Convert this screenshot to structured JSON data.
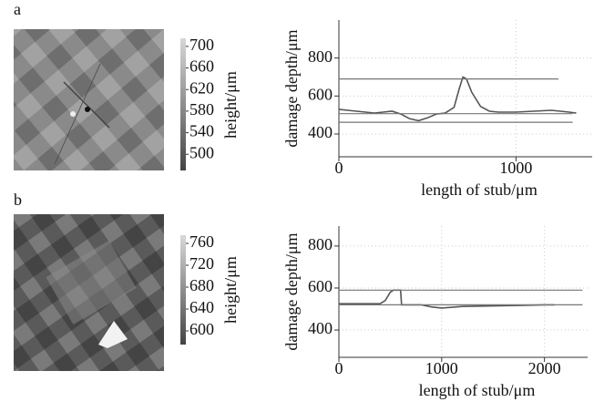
{
  "panels": [
    {
      "label": "a",
      "colorbar": {
        "label": "height/μm",
        "lim": [
          470,
          715
        ],
        "ticks": [
          500,
          540,
          580,
          620,
          660,
          700
        ]
      }
    },
    {
      "label": "b",
      "colorbar": {
        "label": "height/μm",
        "lim": [
          575,
          775
        ],
        "ticks": [
          600,
          640,
          680,
          720,
          760
        ]
      }
    }
  ],
  "chart_data": [
    {
      "type": "line",
      "xlabel": "length of stub/μm",
      "ylabel": "damage depth/μm",
      "xlim": [
        0,
        1430
      ],
      "ylim": [
        280,
        1000
      ],
      "xticks": [
        0,
        1000
      ],
      "yticks": [
        400,
        600,
        800
      ],
      "grid": true,
      "series": [
        {
          "color": "#555555",
          "x": [
            0,
            50,
            100,
            150,
            200,
            250,
            300,
            350,
            400,
            450,
            500,
            550,
            600,
            650,
            680,
            700,
            720,
            750,
            800,
            850,
            900,
            1000,
            1100,
            1200,
            1300,
            1340
          ],
          "values": [
            530,
            525,
            520,
            515,
            510,
            515,
            520,
            505,
            480,
            470,
            485,
            505,
            510,
            540,
            640,
            700,
            690,
            620,
            545,
            520,
            515,
            515,
            520,
            525,
            515,
            510
          ]
        },
        {
          "color": "#777777",
          "x": [
            0,
            1240
          ],
          "values": [
            690,
            690
          ]
        },
        {
          "color": "#777777",
          "x": [
            0,
            1320
          ],
          "values": [
            507,
            507
          ]
        },
        {
          "color": "#777777",
          "x": [
            0,
            1320
          ],
          "values": [
            462,
            462
          ]
        }
      ]
    },
    {
      "type": "line",
      "xlabel": "length of stub/μm",
      "ylabel": "damage depth/μm",
      "xlim": [
        0,
        2420
      ],
      "ylim": [
        270,
        895
      ],
      "xticks": [
        0,
        1000,
        2000
      ],
      "yticks": [
        400,
        600,
        800
      ],
      "grid": true,
      "series": [
        {
          "color": "#555555",
          "x": [
            0,
            200,
            400,
            450,
            500,
            530,
            600,
            610,
            800,
            900,
            1000,
            1200,
            1500,
            1800,
            2000,
            2100
          ],
          "values": [
            525,
            525,
            525,
            540,
            580,
            590,
            590,
            520,
            520,
            510,
            505,
            512,
            515,
            518,
            520,
            520
          ]
        },
        {
          "color": "#777777",
          "x": [
            0,
            2370
          ],
          "values": [
            590,
            590
          ]
        },
        {
          "color": "#777777",
          "x": [
            0,
            2370
          ],
          "values": [
            520,
            520
          ]
        }
      ]
    }
  ]
}
